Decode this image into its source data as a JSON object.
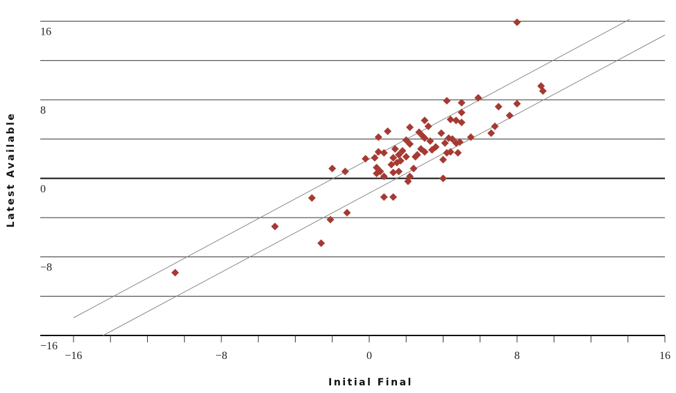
{
  "chart_data": {
    "type": "scatter",
    "title": "",
    "xlabel": "Initial Final",
    "ylabel": "Latest Available",
    "xlim": [
      -17.8,
      16
    ],
    "ylim": [
      -16,
      17.6
    ],
    "x_ticks": [
      -16,
      -8,
      0,
      8,
      16
    ],
    "x_tick_labels": [
      "−16",
      "−8",
      "0",
      "8",
      "16"
    ],
    "y_ticks": [
      -16,
      -8,
      0,
      8,
      16
    ],
    "y_tick_labels": [
      "−16",
      "−8",
      "0",
      "8",
      "16"
    ],
    "y_gridlines": [
      -16,
      -12,
      -8,
      -4,
      0,
      4,
      8,
      12,
      16
    ],
    "x_minor_tick_step": 2,
    "grid": "horizontal",
    "legend": "none",
    "colors": {
      "points": "#A53A33",
      "grid": "#333333",
      "fit_lines": "#888888"
    },
    "reference_lines": [
      {
        "x1": -16,
        "y1": -14.2,
        "x2": 14.1,
        "y2": 16.2
      },
      {
        "x1": -14.4,
        "y1": -16,
        "x2": 16,
        "y2": 14.6
      }
    ],
    "points": [
      [
        8.0,
        15.9
      ],
      [
        9.3,
        9.4
      ],
      [
        9.4,
        8.9
      ],
      [
        8.0,
        7.6
      ],
      [
        7.6,
        6.4
      ],
      [
        5.9,
        8.2
      ],
      [
        7.0,
        7.3
      ],
      [
        5.0,
        7.7
      ],
      [
        4.2,
        7.9
      ],
      [
        6.8,
        5.3
      ],
      [
        6.6,
        4.6
      ],
      [
        5.5,
        4.2
      ],
      [
        5.0,
        6.7
      ],
      [
        5.0,
        5.7
      ],
      [
        4.4,
        6.0
      ],
      [
        4.7,
        5.9
      ],
      [
        3.0,
        5.9
      ],
      [
        3.2,
        5.3
      ],
      [
        2.7,
        4.7
      ],
      [
        2.9,
        4.3
      ],
      [
        2.2,
        5.2
      ],
      [
        3.0,
        4.1
      ],
      [
        3.3,
        3.8
      ],
      [
        3.9,
        4.6
      ],
      [
        4.1,
        3.6
      ],
      [
        4.3,
        4.1
      ],
      [
        4.5,
        4.0
      ],
      [
        4.7,
        3.6
      ],
      [
        4.9,
        3.7
      ],
      [
        3.6,
        3.2
      ],
      [
        3.4,
        2.9
      ],
      [
        3.0,
        2.7
      ],
      [
        2.8,
        3.0
      ],
      [
        2.6,
        2.4
      ],
      [
        2.2,
        3.5
      ],
      [
        2.0,
        3.9
      ],
      [
        1.0,
        4.8
      ],
      [
        0.5,
        4.2
      ],
      [
        1.8,
        2.8
      ],
      [
        1.6,
        2.4
      ],
      [
        1.4,
        3.0
      ],
      [
        2.0,
        2.2
      ],
      [
        1.7,
        1.8
      ],
      [
        1.3,
        2.1
      ],
      [
        1.5,
        1.6
      ],
      [
        1.2,
        1.4
      ],
      [
        0.8,
        2.6
      ],
      [
        0.5,
        2.7
      ],
      [
        0.3,
        2.1
      ],
      [
        -0.2,
        2.0
      ],
      [
        0.4,
        1.1
      ],
      [
        0.6,
        0.7
      ],
      [
        0.4,
        0.5
      ],
      [
        0.8,
        0.2
      ],
      [
        1.3,
        0.6
      ],
      [
        1.6,
        0.7
      ],
      [
        2.4,
        1.0
      ],
      [
        2.5,
        2.2
      ],
      [
        2.2,
        0.2
      ],
      [
        2.1,
        -0.3
      ],
      [
        4.0,
        1.9
      ],
      [
        4.2,
        2.6
      ],
      [
        4.4,
        2.7
      ],
      [
        4.8,
        2.6
      ],
      [
        4.0,
        0.0
      ],
      [
        0.8,
        -1.9
      ],
      [
        1.3,
        -1.9
      ],
      [
        -1.3,
        0.7
      ],
      [
        -2.0,
        1.0
      ],
      [
        -1.2,
        -3.5
      ],
      [
        -2.1,
        -4.2
      ],
      [
        -3.1,
        -2.0
      ],
      [
        -2.6,
        -6.6
      ],
      [
        -5.1,
        -4.9
      ],
      [
        -10.5,
        -9.6
      ]
    ]
  }
}
